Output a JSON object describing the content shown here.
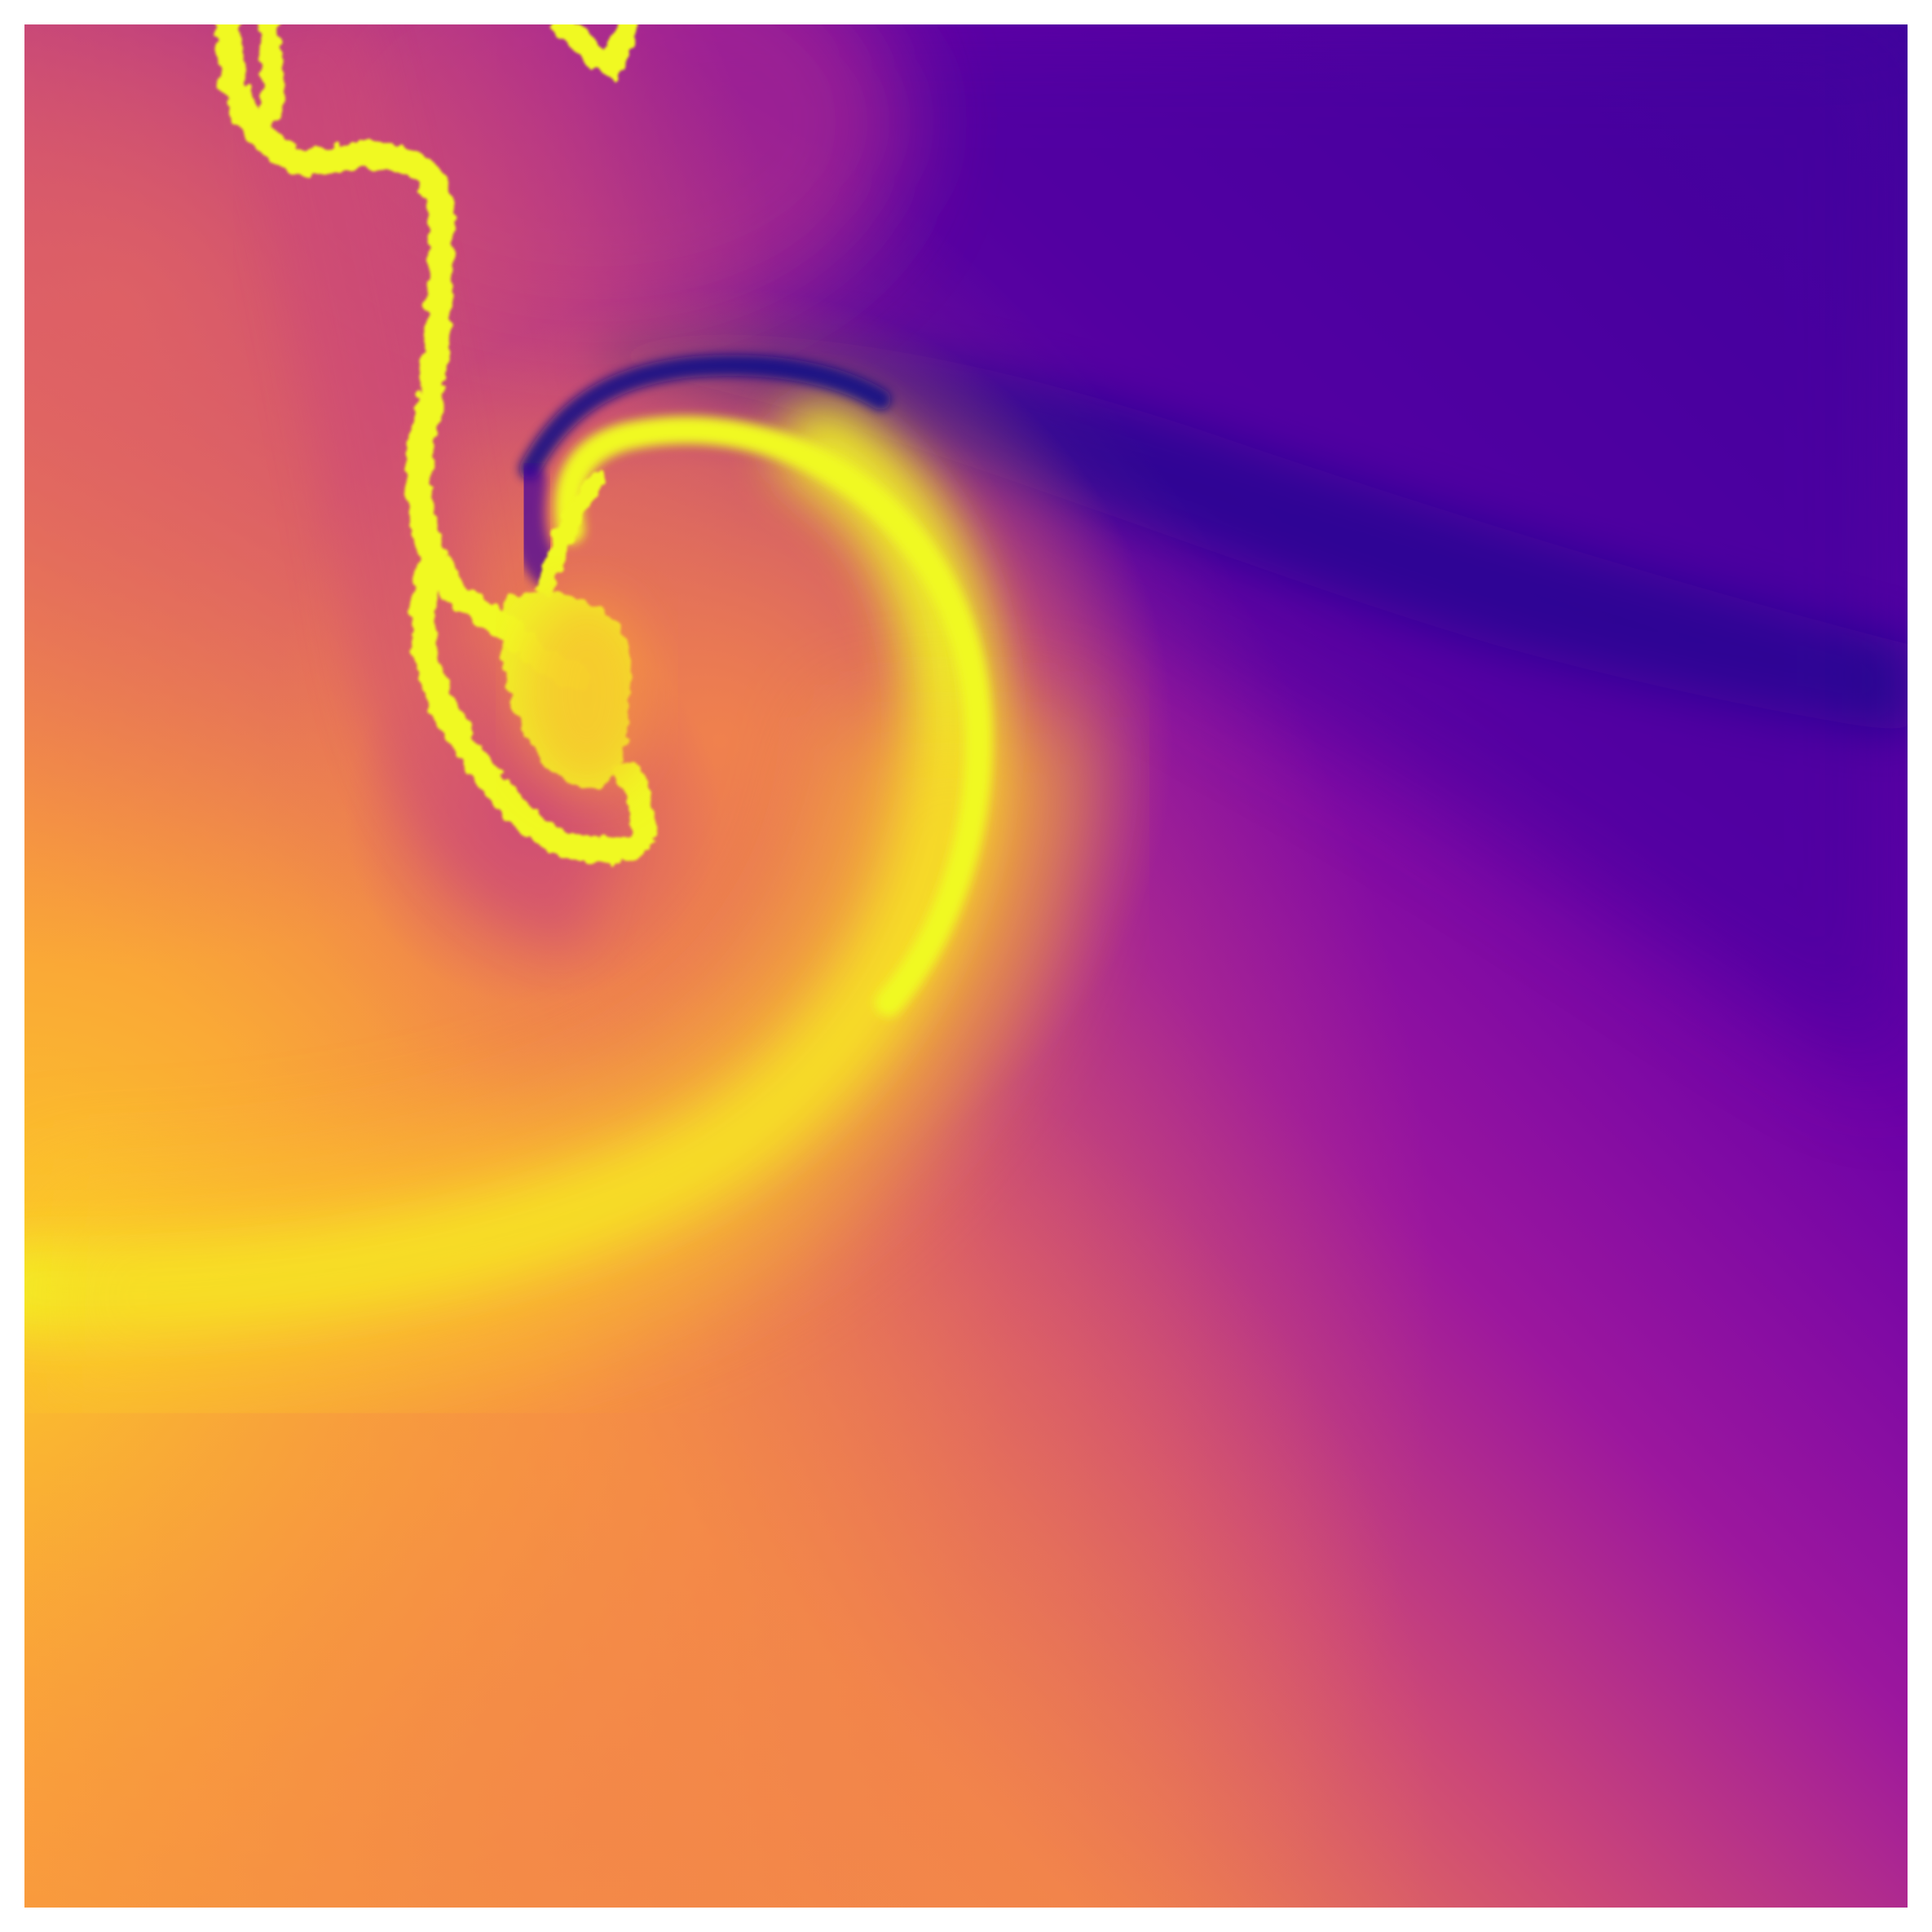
{
  "image": {
    "description_kind": "colormapped scalar field",
    "colormap": "plasma",
    "palette": {
      "deep_blue": "#0d0887",
      "indigo": "#41049d",
      "violet": "#6a00a8",
      "purple": "#8f0da4",
      "magenta": "#b12a90",
      "pink": "#cc4778",
      "salmon": "#e16462",
      "orange": "#f2844b",
      "amber": "#fca636",
      "gold": "#fcce25",
      "yellow": "#f0f921"
    },
    "background": "#ffffff"
  }
}
